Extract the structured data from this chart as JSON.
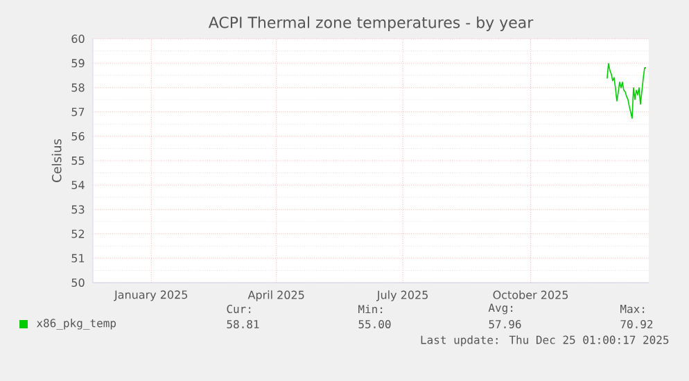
{
  "chart_data": {
    "type": "line",
    "title": "ACPI Thermal zone temperatures - by year",
    "ylabel": "Celsius",
    "xlim": [
      "2024-11-20",
      "2025-12-25"
    ],
    "xticks": [
      {
        "value": "2025-01-01",
        "label": "January 2025"
      },
      {
        "value": "2025-04-01",
        "label": "April 2025"
      },
      {
        "value": "2025-07-01",
        "label": "July 2025"
      },
      {
        "value": "2025-10-01",
        "label": "October 2025"
      }
    ],
    "ylim": [
      50,
      60
    ],
    "yticks": [
      50,
      51,
      52,
      53,
      54,
      55,
      56,
      57,
      58,
      59,
      60
    ],
    "grid": true,
    "legend": "bottom",
    "marker": "none",
    "line_style": "solid",
    "series": [
      {
        "name": "x86_pkg_temp",
        "color": "#00cc00",
        "x": [
          "2025-11-25",
          "2025-11-26",
          "2025-11-27",
          "2025-11-28",
          "2025-11-29",
          "2025-11-30",
          "2025-12-01",
          "2025-12-02",
          "2025-12-03",
          "2025-12-04",
          "2025-12-05",
          "2025-12-06",
          "2025-12-07",
          "2025-12-08",
          "2025-12-09",
          "2025-12-10",
          "2025-12-11",
          "2025-12-12",
          "2025-12-13",
          "2025-12-14",
          "2025-12-15",
          "2025-12-16",
          "2025-12-17",
          "2025-12-18",
          "2025-12-19",
          "2025-12-20",
          "2025-12-21",
          "2025-12-22",
          "2025-12-23"
        ],
        "values": [
          58.37,
          58.98,
          58.71,
          58.56,
          58.28,
          58.41,
          57.99,
          57.45,
          57.79,
          58.22,
          57.99,
          58.22,
          57.89,
          57.83,
          57.64,
          57.51,
          57.22,
          56.99,
          56.74,
          57.99,
          57.51,
          57.89,
          57.7,
          57.99,
          57.32,
          57.83,
          58.37,
          58.81,
          58.81
        ]
      }
    ],
    "annotations": [
      "Cur:",
      "Min:",
      "Avg:",
      "Max:",
      "58.81",
      "55.00",
      "57.96",
      "70.92",
      "Last update: Thu Dec 25 01:00:17 2025"
    ]
  }
}
